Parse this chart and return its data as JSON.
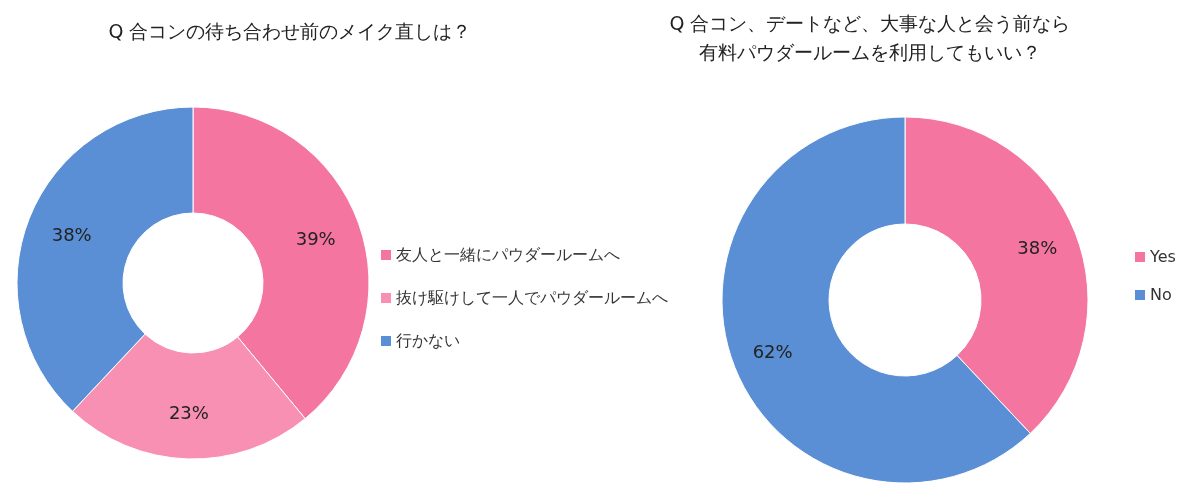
{
  "chart_data": [
    {
      "type": "donut",
      "title": "Q 合コンの待ち合わせ前のメイク直しは？",
      "categories": [
        "友人と一緒にパウダールームへ",
        "抜け駆けして一人でパウダールームへ",
        "行かない"
      ],
      "values": [
        39,
        23,
        38
      ],
      "value_labels": [
        "39%",
        "23%",
        "38%"
      ],
      "colors": [
        "#f476a0",
        "#f890b4",
        "#5a8fd5"
      ],
      "legend": "right"
    },
    {
      "type": "donut",
      "title": "Q 合コン、デートなど、大事な人と会う前なら",
      "subtitle": "有料パウダールームを利用してもいい？",
      "categories": [
        "Yes",
        "No"
      ],
      "values": [
        38,
        62
      ],
      "value_labels": [
        "38%",
        "62%"
      ],
      "colors": [
        "#f476a0",
        "#5a8fd5"
      ],
      "legend": "right"
    }
  ]
}
